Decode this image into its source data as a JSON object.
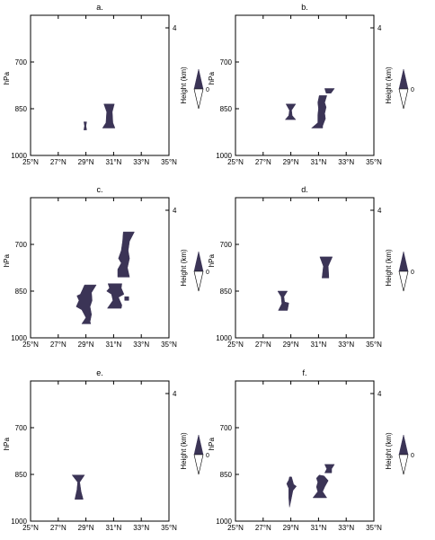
{
  "figure": {
    "colors": {
      "fill": "#3b3456",
      "axis": "#000000",
      "background": "#ffffff"
    },
    "common": {
      "y_label": "hPa",
      "right_label": "Height (km)",
      "y_ticks": [
        {
          "value": 1000,
          "label": "1000"
        },
        {
          "value": 850,
          "label": "850"
        },
        {
          "value": 700,
          "label": "700"
        }
      ],
      "right_ticks": [
        {
          "label": "4"
        }
      ],
      "x_ticks": [
        "25°N",
        "27°N",
        "29°N",
        "31°N",
        "33°N",
        "35°N"
      ],
      "x_tick_values": [
        25,
        27,
        29,
        31,
        33,
        35
      ],
      "xlim": [
        25,
        35
      ],
      "ylim_hPa": [
        1000,
        550
      ],
      "legend_label": "0"
    }
  },
  "chart_data": [
    {
      "type": "area",
      "panel_label": "a.",
      "contours": [
        {
          "name": "blob1",
          "points": [
            [
              28.85,
              892
            ],
            [
              29.05,
              892
            ],
            [
              29.0,
              905
            ],
            [
              29.05,
              918
            ],
            [
              28.85,
              918
            ],
            [
              28.9,
              905
            ]
          ]
        },
        {
          "name": "blob2",
          "points": [
            [
              30.3,
              835
            ],
            [
              31.05,
              835
            ],
            [
              30.9,
              860
            ],
            [
              30.95,
              895
            ],
            [
              31.1,
              912
            ],
            [
              30.2,
              912
            ],
            [
              30.45,
              895
            ],
            [
              30.5,
              860
            ]
          ]
        }
      ]
    },
    {
      "type": "area",
      "panel_label": "b.",
      "contours": [
        {
          "name": "blob1",
          "points": [
            [
              28.65,
              835
            ],
            [
              29.35,
              835
            ],
            [
              29.05,
              855
            ],
            [
              29.1,
              872
            ],
            [
              29.35,
              885
            ],
            [
              28.6,
              885
            ],
            [
              28.85,
              872
            ],
            [
              28.9,
              855
            ]
          ]
        },
        {
          "name": "blob2",
          "points": [
            [
              31.45,
              785
            ],
            [
              32.15,
              785
            ],
            [
              31.9,
              800
            ],
            [
              31.55,
              800
            ]
          ]
        },
        {
          "name": "blob3",
          "points": [
            [
              31.05,
              808
            ],
            [
              31.6,
              808
            ],
            [
              31.45,
              830
            ],
            [
              31.55,
              845
            ],
            [
              31.45,
              865
            ],
            [
              31.5,
              882
            ],
            [
              31.3,
              905
            ],
            [
              31.3,
              912
            ],
            [
              30.5,
              912
            ],
            [
              30.95,
              895
            ],
            [
              30.95,
              870
            ],
            [
              31.0,
              850
            ],
            [
              30.95,
              830
            ]
          ]
        }
      ]
    },
    {
      "type": "area",
      "panel_label": "c.",
      "contours": [
        {
          "name": "blob1",
          "points": [
            [
              28.9,
              830
            ],
            [
              29.75,
              830
            ],
            [
              29.4,
              855
            ],
            [
              29.45,
              880
            ],
            [
              29.3,
              900
            ],
            [
              29.4,
              925
            ],
            [
              29.3,
              948
            ],
            [
              29.35,
              955
            ],
            [
              28.7,
              955
            ],
            [
              29.0,
              935
            ],
            [
              28.7,
              910
            ],
            [
              28.3,
              900
            ],
            [
              28.5,
              880
            ],
            [
              28.35,
              865
            ],
            [
              28.6,
              860
            ],
            [
              28.75,
              845
            ]
          ]
        },
        {
          "name": "blob2",
          "points": [
            [
              30.6,
              826
            ],
            [
              31.6,
              826
            ],
            [
              31.55,
              840
            ],
            [
              31.75,
              860
            ],
            [
              31.35,
              870
            ],
            [
              31.6,
              895
            ],
            [
              31.55,
              905
            ],
            [
              30.55,
              905
            ],
            [
              30.95,
              880
            ],
            [
              30.85,
              860
            ],
            [
              30.5,
              850
            ],
            [
              30.7,
              840
            ]
          ]
        },
        {
          "name": "blob3",
          "points": [
            [
              31.7,
              660
            ],
            [
              32.5,
              660
            ],
            [
              32.15,
              690
            ],
            [
              32.05,
              720
            ],
            [
              32.15,
              745
            ],
            [
              32.0,
              775
            ],
            [
              32.15,
              805
            ],
            [
              31.3,
              805
            ],
            [
              31.3,
              780
            ],
            [
              31.55,
              760
            ],
            [
              31.35,
              745
            ],
            [
              31.55,
              720
            ],
            [
              31.65,
              690
            ]
          ]
        },
        {
          "name": "blob4",
          "points": [
            [
              31.8,
              868
            ],
            [
              32.1,
              868
            ],
            [
              32.1,
              880
            ],
            [
              31.8,
              880
            ]
          ]
        }
      ]
    },
    {
      "type": "area",
      "panel_label": "d.",
      "contours": [
        {
          "name": "blob1",
          "points": [
            [
              28.05,
              850
            ],
            [
              28.75,
              850
            ],
            [
              28.5,
              868
            ],
            [
              28.55,
              885
            ],
            [
              28.85,
              888
            ],
            [
              28.75,
              912
            ],
            [
              28.1,
              912
            ],
            [
              28.35,
              890
            ],
            [
              28.3,
              868
            ]
          ]
        },
        {
          "name": "blob2",
          "points": [
            [
              31.1,
              740
            ],
            [
              32.0,
              740
            ],
            [
              31.7,
              770
            ],
            [
              31.75,
              808
            ],
            [
              31.25,
              808
            ],
            [
              31.35,
              770
            ]
          ]
        }
      ]
    },
    {
      "type": "area",
      "panel_label": "e.",
      "contours": [
        {
          "name": "blob1",
          "points": [
            [
              28.0,
              852
            ],
            [
              28.9,
              852
            ],
            [
              28.55,
              875
            ],
            [
              28.65,
              905
            ],
            [
              28.8,
              930
            ],
            [
              28.2,
              930
            ],
            [
              28.35,
              900
            ],
            [
              28.4,
              875
            ]
          ]
        }
      ]
    },
    {
      "type": "area",
      "panel_label": "f.",
      "contours": [
        {
          "name": "blob1",
          "points": [
            [
              28.9,
              858
            ],
            [
              29.05,
              858
            ],
            [
              29.2,
              882
            ],
            [
              29.4,
              888
            ],
            [
              29.15,
              902
            ],
            [
              29.0,
              935
            ],
            [
              28.9,
              955
            ],
            [
              28.85,
              925
            ],
            [
              28.85,
              895
            ],
            [
              28.7,
              880
            ],
            [
              28.85,
              868
            ]
          ]
        },
        {
          "name": "blob2",
          "points": [
            [
              31.45,
              818
            ],
            [
              32.15,
              818
            ],
            [
              31.95,
              832
            ],
            [
              31.95,
              845
            ],
            [
              31.45,
              845
            ],
            [
              31.6,
              832
            ]
          ]
        },
        {
          "name": "blob3",
          "points": [
            [
              31.05,
              852
            ],
            [
              31.4,
              855
            ],
            [
              31.7,
              870
            ],
            [
              31.45,
              890
            ],
            [
              31.3,
              905
            ],
            [
              31.6,
              925
            ],
            [
              30.6,
              925
            ],
            [
              30.95,
              905
            ],
            [
              30.85,
              890
            ],
            [
              30.95,
              875
            ],
            [
              30.85,
              862
            ]
          ]
        }
      ]
    }
  ]
}
